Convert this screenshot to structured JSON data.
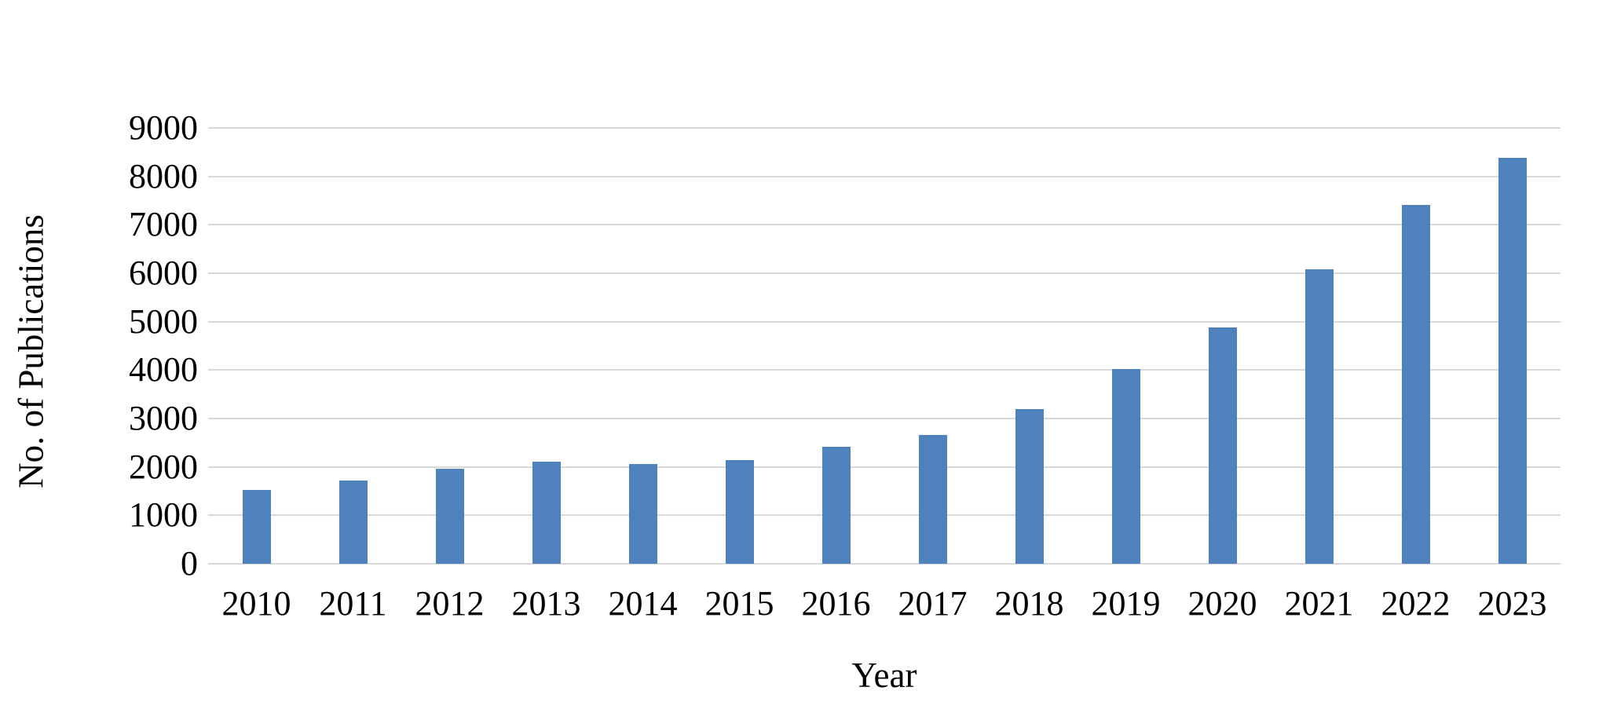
{
  "chart_data": {
    "type": "bar",
    "title": "",
    "xlabel": "Year",
    "ylabel": "No. of Publications",
    "categories": [
      "2010",
      "2011",
      "2012",
      "2013",
      "2014",
      "2015",
      "2016",
      "2017",
      "2018",
      "2019",
      "2020",
      "2021",
      "2022",
      "2023"
    ],
    "values": [
      1520,
      1720,
      1960,
      2110,
      2060,
      2140,
      2420,
      2660,
      3200,
      4020,
      4880,
      6080,
      7410,
      8390
    ],
    "ylim": [
      0,
      9000
    ],
    "ytick_step": 1000,
    "ytick_labels": [
      "0",
      "1000",
      "2000",
      "3000",
      "4000",
      "5000",
      "6000",
      "7000",
      "8000",
      "9000"
    ],
    "grid": "horizontal",
    "legend_position": "none",
    "bar_color": "#4f81bd",
    "gridline_color": "#d9d9d9",
    "text_color": "#000000",
    "background_color": "#ffffff"
  }
}
